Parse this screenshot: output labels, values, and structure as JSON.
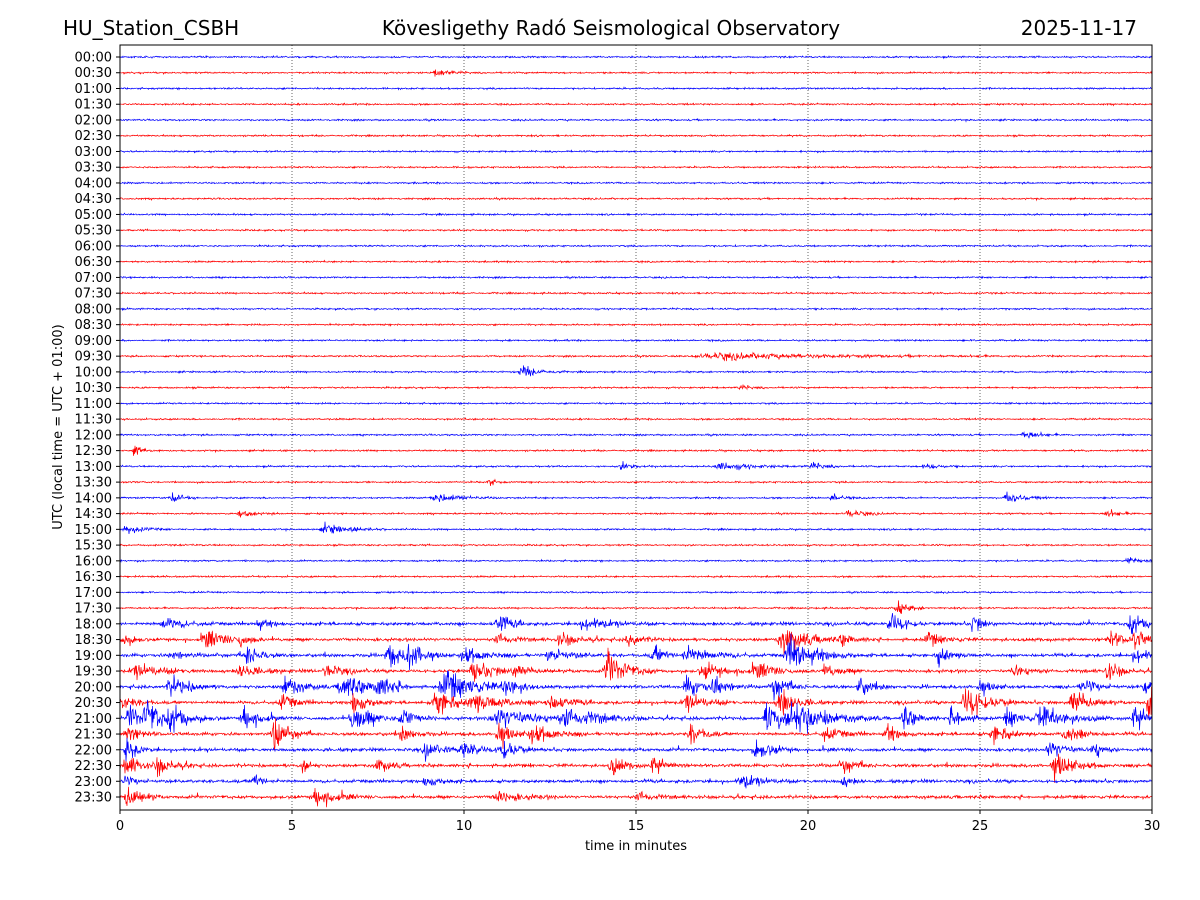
{
  "header": {
    "station": "HU_Station_CSBH",
    "observatory": "Kövesligethy Radó Seismological Observatory",
    "date": "2025-11-17"
  },
  "chart_data": {
    "type": "line",
    "subtype": "helicorder",
    "xlabel": "time in minutes",
    "ylabel": "UTC (local time = UTC + 01:00)",
    "xlim": [
      0,
      30
    ],
    "xticks": [
      "0",
      "5",
      "10",
      "15",
      "20",
      "25",
      "30"
    ],
    "grid": "vertical dotted at 5-minute intervals",
    "colors": [
      "#0000ff",
      "#ff0000"
    ],
    "rows": [
      "00:00",
      "00:30",
      "01:00",
      "01:30",
      "02:00",
      "02:30",
      "03:00",
      "03:30",
      "04:00",
      "04:30",
      "05:00",
      "05:30",
      "06:00",
      "06:30",
      "07:00",
      "07:30",
      "08:00",
      "08:30",
      "09:00",
      "09:30",
      "10:00",
      "10:30",
      "11:00",
      "11:30",
      "12:00",
      "12:30",
      "13:00",
      "13:30",
      "14:00",
      "14:30",
      "15:00",
      "15:30",
      "16:00",
      "16:30",
      "17:00",
      "17:30",
      "18:00",
      "18:30",
      "19:00",
      "19:30",
      "20:00",
      "20:30",
      "21:00",
      "21:30",
      "22:00",
      "22:30",
      "23:00",
      "23:30"
    ],
    "noise_level_by_row": "low 00:00-17:30, high 18:00-23:30",
    "events": {
      "00:30": [
        [
          9.2,
          0.25,
          0.4
        ]
      ],
      "09:30": [
        [
          17.5,
          0.18,
          3.5
        ]
      ],
      "10:00": [
        [
          11.7,
          0.35,
          0.5
        ]
      ],
      "10:30": [
        [
          18,
          0.15,
          0.3
        ]
      ],
      "12:00": [
        [
          26.3,
          0.25,
          0.4
        ]
      ],
      "12:30": [
        [
          0.4,
          0.3,
          0.3
        ]
      ],
      "13:00": [
        [
          14.6,
          0.25,
          0.4
        ],
        [
          17.5,
          0.2,
          1.0
        ],
        [
          20.1,
          0.2,
          0.4
        ],
        [
          23.4,
          0.2,
          0.4
        ]
      ],
      "13:30": [
        [
          10.7,
          0.25,
          0.2
        ]
      ],
      "14:00": [
        [
          1.5,
          0.3,
          0.3
        ],
        [
          9.2,
          0.25,
          0.8
        ],
        [
          20.7,
          0.25,
          0.3
        ],
        [
          25.8,
          0.3,
          0.5
        ]
      ],
      "14:30": [
        [
          3.5,
          0.2,
          0.4
        ],
        [
          21.2,
          0.2,
          0.5
        ],
        [
          28.7,
          0.2,
          0.4
        ]
      ],
      "15:00": [
        [
          0.2,
          0.25,
          0.5
        ],
        [
          6.0,
          0.3,
          0.7
        ]
      ],
      "16:00": [
        [
          29.3,
          0.25,
          0.3
        ]
      ],
      "17:30": [
        [
          22.6,
          0.35,
          0.4
        ]
      ],
      "18:00": [
        [
          1.3,
          0.35,
          0.6
        ],
        [
          4,
          0.3,
          0.4
        ],
        [
          11,
          0.6,
          0.4
        ],
        [
          13.5,
          0.35,
          0.8
        ],
        [
          22.4,
          0.8,
          0.4
        ],
        [
          24.8,
          0.5,
          0.3
        ],
        [
          29.4,
          0.6,
          0.5
        ]
      ],
      "18:30": [
        [
          0.1,
          0.45,
          0.3
        ],
        [
          2.5,
          0.5,
          0.6
        ],
        [
          3.5,
          0.35,
          0.3
        ],
        [
          11,
          0.4,
          0.4
        ],
        [
          12.8,
          0.4,
          0.5
        ],
        [
          14.8,
          0.4,
          0.4
        ],
        [
          19.3,
          0.7,
          0.8
        ],
        [
          21,
          0.3,
          0.4
        ],
        [
          23.5,
          0.35,
          0.5
        ],
        [
          28.8,
          0.45,
          0.5
        ],
        [
          29.5,
          0.4,
          0.4
        ]
      ],
      "19:00": [
        [
          1.5,
          0.3,
          0.4
        ],
        [
          3.7,
          0.6,
          0.4
        ],
        [
          7.8,
          0.7,
          0.4
        ],
        [
          8.4,
          0.8,
          0.5
        ],
        [
          10,
          0.5,
          0.6
        ],
        [
          12.5,
          0.4,
          0.6
        ],
        [
          15.5,
          0.55,
          0.4
        ],
        [
          16.5,
          0.45,
          0.8
        ],
        [
          19.5,
          1.0,
          0.8
        ],
        [
          23.8,
          0.55,
          0.4
        ],
        [
          29.5,
          0.5,
          0.4
        ]
      ],
      "19:30": [
        [
          0.5,
          0.4,
          0.8
        ],
        [
          3.5,
          0.45,
          0.5
        ],
        [
          6,
          0.35,
          0.5
        ],
        [
          10.3,
          0.6,
          0.6
        ],
        [
          11.5,
          0.4,
          0.5
        ],
        [
          14.2,
          1.0,
          0.6
        ],
        [
          17,
          0.4,
          0.8
        ],
        [
          18.5,
          0.4,
          0.6
        ],
        [
          20.5,
          0.35,
          0.5
        ],
        [
          26,
          0.35,
          0.5
        ],
        [
          28.7,
          0.6,
          0.4
        ]
      ],
      "20:00": [
        [
          1.5,
          0.6,
          0.6
        ],
        [
          4.8,
          0.65,
          0.5
        ],
        [
          6.5,
          0.7,
          0.8
        ],
        [
          7.5,
          0.55,
          0.5
        ],
        [
          9.5,
          0.85,
          1.0
        ],
        [
          11.2,
          0.6,
          0.4
        ],
        [
          16.5,
          0.6,
          0.5
        ],
        [
          17.3,
          0.6,
          0.4
        ],
        [
          19,
          0.7,
          0.4
        ],
        [
          21.5,
          0.5,
          0.4
        ],
        [
          25,
          0.45,
          0.4
        ],
        [
          28,
          0.5,
          0.4
        ],
        [
          29.8,
          0.6,
          0.3
        ]
      ],
      "20:30": [
        [
          0.1,
          0.4,
          0.4
        ],
        [
          4.7,
          0.45,
          0.4
        ],
        [
          6.8,
          0.75,
          0.4
        ],
        [
          9.2,
          0.9,
          0.5
        ],
        [
          10.3,
          0.6,
          0.8
        ],
        [
          12.5,
          0.45,
          0.6
        ],
        [
          16.5,
          0.5,
          0.6
        ],
        [
          19.2,
          0.8,
          0.5
        ],
        [
          24.6,
          1.1,
          0.6
        ],
        [
          27.7,
          0.9,
          0.5
        ],
        [
          29.9,
          1.0,
          0.3
        ]
      ],
      "21:00": [
        [
          0.3,
          0.8,
          0.4
        ],
        [
          0.8,
          0.9,
          0.5
        ],
        [
          1.5,
          0.7,
          0.6
        ],
        [
          3.6,
          0.9,
          0.4
        ],
        [
          6.8,
          0.8,
          0.6
        ],
        [
          8.2,
          0.7,
          0.4
        ],
        [
          11,
          0.6,
          1.2
        ],
        [
          13,
          0.55,
          1.0
        ],
        [
          18.8,
          1.0,
          0.5
        ],
        [
          19.6,
          1.0,
          1.0
        ],
        [
          22.8,
          0.7,
          0.4
        ],
        [
          24.2,
          0.7,
          0.4
        ],
        [
          25.8,
          0.6,
          0.4
        ],
        [
          26.8,
          0.7,
          0.8
        ],
        [
          29.5,
          0.8,
          0.4
        ]
      ],
      "21:30": [
        [
          0.2,
          0.5,
          0.4
        ],
        [
          4.5,
          1.0,
          0.4
        ],
        [
          8.2,
          0.4,
          0.4
        ],
        [
          11,
          0.8,
          0.4
        ],
        [
          12,
          0.6,
          0.6
        ],
        [
          16.6,
          0.6,
          0.4
        ],
        [
          20.5,
          0.4,
          0.5
        ],
        [
          22.3,
          0.5,
          0.4
        ],
        [
          25.4,
          0.55,
          0.5
        ],
        [
          27.5,
          0.5,
          0.5
        ]
      ],
      "22:00": [
        [
          0.2,
          0.7,
          0.3
        ],
        [
          8.9,
          0.55,
          0.4
        ],
        [
          10,
          0.6,
          0.5
        ],
        [
          11.1,
          0.75,
          0.4
        ],
        [
          18.5,
          0.6,
          0.5
        ],
        [
          27,
          0.55,
          0.5
        ],
        [
          28.3,
          0.6,
          0.3
        ]
      ],
      "22:30": [
        [
          0.2,
          0.6,
          0.4
        ],
        [
          1.1,
          0.5,
          0.5
        ],
        [
          5.3,
          0.6,
          0.2
        ],
        [
          7.5,
          0.4,
          0.4
        ],
        [
          14.3,
          0.5,
          0.4
        ],
        [
          15.5,
          0.55,
          0.4
        ],
        [
          21,
          0.45,
          0.4
        ],
        [
          27.2,
          0.8,
          0.6
        ]
      ],
      "23:00": [
        [
          0.1,
          0.35,
          0.3
        ],
        [
          3.9,
          0.45,
          0.3
        ],
        [
          8.9,
          0.35,
          0.4
        ],
        [
          18.1,
          0.4,
          0.6
        ],
        [
          21,
          0.3,
          0.3
        ]
      ],
      "23:30": [
        [
          0.2,
          0.8,
          0.4
        ],
        [
          5.7,
          0.7,
          0.5
        ],
        [
          11,
          0.3,
          0.8
        ],
        [
          15.1,
          0.35,
          0.4
        ]
      ]
    }
  }
}
